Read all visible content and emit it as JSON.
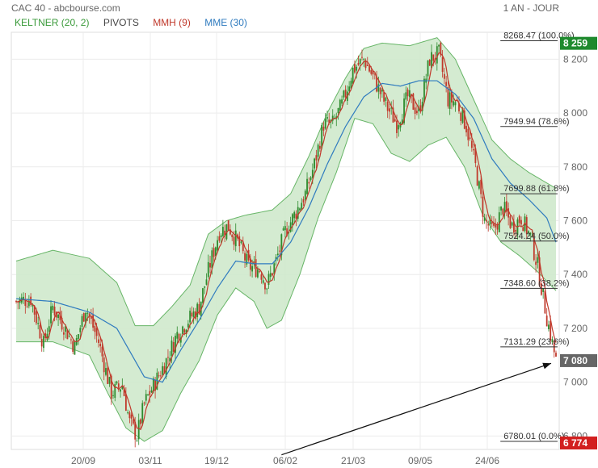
{
  "header": {
    "title": "CAC 40 - abcbourse.com",
    "period": "1 AN - JOUR"
  },
  "legend": [
    {
      "label": "KELTNER (20, 2)",
      "color": "#3a9a3a"
    },
    {
      "label": "PIVOTS",
      "color": "#444444"
    },
    {
      "label": "MMH (9)",
      "color": "#c0392b"
    },
    {
      "label": "MME (30)",
      "color": "#2f7bbf"
    }
  ],
  "chart_data": {
    "type": "candlestick",
    "ylim": [
      6750,
      8300
    ],
    "y_ticks": [
      6800,
      7000,
      7200,
      7400,
      7600,
      7800,
      8000,
      8200
    ],
    "y_tick_labels": [
      "6 800",
      "7 000",
      "7 200",
      "7 400",
      "7 600",
      "7 800",
      "8 000",
      "8 200"
    ],
    "x_tick_labels": [
      "20/09",
      "03/11",
      "19/12",
      "06/02",
      "21/03",
      "09/05",
      "24/06"
    ],
    "close_path": [
      [
        0,
        7300
      ],
      [
        8,
        7310
      ],
      [
        15,
        7140
      ],
      [
        20,
        7280
      ],
      [
        26,
        7210
      ],
      [
        32,
        7130
      ],
      [
        38,
        7280
      ],
      [
        45,
        7150
      ],
      [
        52,
        6960
      ],
      [
        58,
        6990
      ],
      [
        62,
        6850
      ],
      [
        66,
        6800
      ],
      [
        70,
        6920
      ],
      [
        76,
        7000
      ],
      [
        82,
        7080
      ],
      [
        88,
        7180
      ],
      [
        94,
        7230
      ],
      [
        100,
        7280
      ],
      [
        106,
        7440
      ],
      [
        111,
        7560
      ],
      [
        116,
        7580
      ],
      [
        121,
        7520
      ],
      [
        127,
        7430
      ],
      [
        133,
        7420
      ],
      [
        137,
        7360
      ],
      [
        142,
        7450
      ],
      [
        147,
        7560
      ],
      [
        152,
        7620
      ],
      [
        158,
        7700
      ],
      [
        163,
        7810
      ],
      [
        168,
        7960
      ],
      [
        173,
        7960
      ],
      [
        178,
        8030
      ],
      [
        184,
        8160
      ],
      [
        190,
        8200
      ],
      [
        196,
        8120
      ],
      [
        202,
        8030
      ],
      [
        208,
        7960
      ],
      [
        214,
        8060
      ],
      [
        220,
        8000
      ],
      [
        226,
        8200
      ],
      [
        231,
        8220
      ],
      [
        236,
        8050
      ],
      [
        241,
        8040
      ],
      [
        246,
        7950
      ],
      [
        251,
        7800
      ],
      [
        256,
        7600
      ],
      [
        261,
        7560
      ],
      [
        266,
        7650
      ],
      [
        271,
        7580
      ],
      [
        276,
        7610
      ],
      [
        281,
        7540
      ],
      [
        285,
        7430
      ],
      [
        290,
        7240
      ],
      [
        295,
        7080
      ]
    ],
    "keltner_upper": [
      [
        0,
        7450
      ],
      [
        20,
        7490
      ],
      [
        40,
        7460
      ],
      [
        55,
        7370
      ],
      [
        65,
        7210
      ],
      [
        75,
        7210
      ],
      [
        85,
        7280
      ],
      [
        95,
        7360
      ],
      [
        105,
        7550
      ],
      [
        115,
        7600
      ],
      [
        125,
        7620
      ],
      [
        140,
        7640
      ],
      [
        150,
        7700
      ],
      [
        160,
        7840
      ],
      [
        170,
        8000
      ],
      [
        180,
        8130
      ],
      [
        190,
        8240
      ],
      [
        200,
        8260
      ],
      [
        215,
        8250
      ],
      [
        230,
        8280
      ],
      [
        240,
        8200
      ],
      [
        250,
        8050
      ],
      [
        260,
        7900
      ],
      [
        270,
        7830
      ],
      [
        280,
        7780
      ],
      [
        295,
        7720
      ]
    ],
    "keltner_lower": [
      [
        0,
        7150
      ],
      [
        20,
        7150
      ],
      [
        40,
        7100
      ],
      [
        50,
        6960
      ],
      [
        60,
        6830
      ],
      [
        70,
        6780
      ],
      [
        80,
        6820
      ],
      [
        90,
        6960
      ],
      [
        100,
        7080
      ],
      [
        110,
        7250
      ],
      [
        120,
        7350
      ],
      [
        130,
        7300
      ],
      [
        137,
        7200
      ],
      [
        145,
        7230
      ],
      [
        155,
        7400
      ],
      [
        165,
        7610
      ],
      [
        175,
        7780
      ],
      [
        185,
        7980
      ],
      [
        195,
        7960
      ],
      [
        205,
        7850
      ],
      [
        215,
        7820
      ],
      [
        225,
        7880
      ],
      [
        235,
        7910
      ],
      [
        245,
        7800
      ],
      [
        255,
        7620
      ],
      [
        265,
        7520
      ],
      [
        275,
        7470
      ],
      [
        285,
        7410
      ],
      [
        295,
        7340
      ]
    ],
    "mme_30": [
      [
        0,
        7310
      ],
      [
        20,
        7300
      ],
      [
        40,
        7260
      ],
      [
        55,
        7200
      ],
      [
        70,
        7020
      ],
      [
        80,
        7000
      ],
      [
        90,
        7120
      ],
      [
        100,
        7230
      ],
      [
        110,
        7350
      ],
      [
        120,
        7450
      ],
      [
        130,
        7440
      ],
      [
        140,
        7440
      ],
      [
        150,
        7520
      ],
      [
        160,
        7650
      ],
      [
        170,
        7810
      ],
      [
        180,
        7950
      ],
      [
        190,
        8060
      ],
      [
        200,
        8110
      ],
      [
        210,
        8100
      ],
      [
        220,
        8120
      ],
      [
        230,
        8120
      ],
      [
        240,
        8070
      ],
      [
        250,
        7980
      ],
      [
        260,
        7830
      ],
      [
        270,
        7740
      ],
      [
        280,
        7680
      ],
      [
        290,
        7610
      ],
      [
        295,
        7520
      ]
    ],
    "fibonacci": [
      {
        "label": "8268.47  (100.0%)",
        "value": 8268.47
      },
      {
        "label": "7949.94  (78.6%)",
        "value": 7949.94
      },
      {
        "label": "7699.88  (61.8%)",
        "value": 7699.88
      },
      {
        "label": "7524.24  (50.0%)",
        "value": 7524.24
      },
      {
        "label": "7348.60  (38.2%)",
        "value": 7348.6
      },
      {
        "label": "7131.29  (23.6%)",
        "value": 7131.29
      },
      {
        "label": "6780.01  (0.0%)",
        "value": 6780.01
      }
    ],
    "price_tags": [
      {
        "label": "8 259",
        "value": 8259,
        "color": "#1f8a2e"
      },
      {
        "label": "7 080",
        "value": 7080,
        "color": "#666666"
      },
      {
        "label": "6 774",
        "value": 6774,
        "color": "#d21f1f"
      }
    ],
    "arrow": {
      "from": [
        145,
        6730
      ],
      "to": [
        295,
        7070
      ]
    },
    "colors": {
      "band_fill": "#cfe9cc",
      "band_line": "#67b567",
      "up": "#2e8b2e",
      "down": "#c0392b"
    }
  }
}
